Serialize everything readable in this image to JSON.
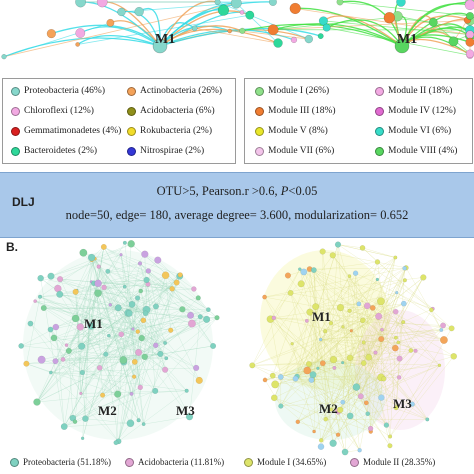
{
  "colors": {
    "proteobacteria": "#86d7cb",
    "chloroflexi": "#f2a9e2",
    "gemmatimonadetes": "#d92020",
    "bacteroidetes": "#2ed89a",
    "actinobacteria": "#f4a259",
    "acidobacteria": "#8f8f1a",
    "rokubacteria": "#f1dc2a",
    "nitrospirae": "#3437d6",
    "module1": "#8fe08a",
    "module2": "#f2a9e2",
    "module3": "#f07d32",
    "module4": "#e06ad0",
    "module5": "#e8e62a",
    "module6": "#37dcc8",
    "module7": "#f3c4ea",
    "module8": "#58d660",
    "edge_cyan": "#37dce6",
    "edge_orange": "#f0a35a",
    "edge_green": "#43e043",
    "dlj_bg": "#a9c8ea",
    "b_yellow": "#dde46a",
    "b_pink": "#e2a6d4",
    "b_teal": "#7fd1c0",
    "b_green": "#7dcf99"
  },
  "top": {
    "left_module_label": "M1",
    "right_module_label": "M1"
  },
  "legend_left": [
    {
      "label": "Proteobacteria (46%)",
      "color": "#86d7cb"
    },
    {
      "label": "Actinobacteria (26%)",
      "color": "#f4a259"
    },
    {
      "label": "Chloroflexi (12%)",
      "color": "#f2a9e2"
    },
    {
      "label": "Acidobacteria (6%)",
      "color": "#8f8f1a"
    },
    {
      "label": "Gemmatimonadetes (4%)",
      "color": "#d92020"
    },
    {
      "label": "Rokubacteria (2%)",
      "color": "#f1dc2a"
    },
    {
      "label": "Bacteroidetes (2%)",
      "color": "#2ed89a"
    },
    {
      "label": "Nitrospirae (2%)",
      "color": "#3437d6"
    }
  ],
  "legend_right": [
    {
      "label": "Module I (26%)",
      "color": "#8fe08a"
    },
    {
      "label": "Module II (18%)",
      "color": "#f2a9e2"
    },
    {
      "label": "Module III (18%)",
      "color": "#f07d32"
    },
    {
      "label": "Module IV (12%)",
      "color": "#e06ad0"
    },
    {
      "label": "Module V (8%)",
      "color": "#e8e62a"
    },
    {
      "label": "Module VI (6%)",
      "color": "#37dcc8"
    },
    {
      "label": "Module VII (6%)",
      "color": "#f3c4ea"
    },
    {
      "label": "Module VIII (4%)",
      "color": "#58d660"
    }
  ],
  "dlj": {
    "tag": "DLJ",
    "line1_a": "OTU>5,  Pearson.r >0.6, ",
    "line1_p": "P",
    "line1_b": "<0.05",
    "line2": "node=50, edge= 180, average degree= 3.600, modularization= 0.652"
  },
  "section_b": {
    "label": "B.",
    "left_modules": [
      "M1",
      "M2",
      "M3"
    ],
    "right_modules": [
      "M1",
      "M2",
      "M3"
    ]
  },
  "bottom_legend": [
    {
      "label": "Proteobacteria (51.18%)",
      "color": "#7fd1c0"
    },
    {
      "label": "Acidobacteria (11.81%)",
      "color": "#e2a6d4"
    },
    {
      "label": "Module I (34.65%)",
      "color": "#dde46a"
    },
    {
      "label": "Module II (28.35%)",
      "color": "#e2a6d4"
    }
  ]
}
